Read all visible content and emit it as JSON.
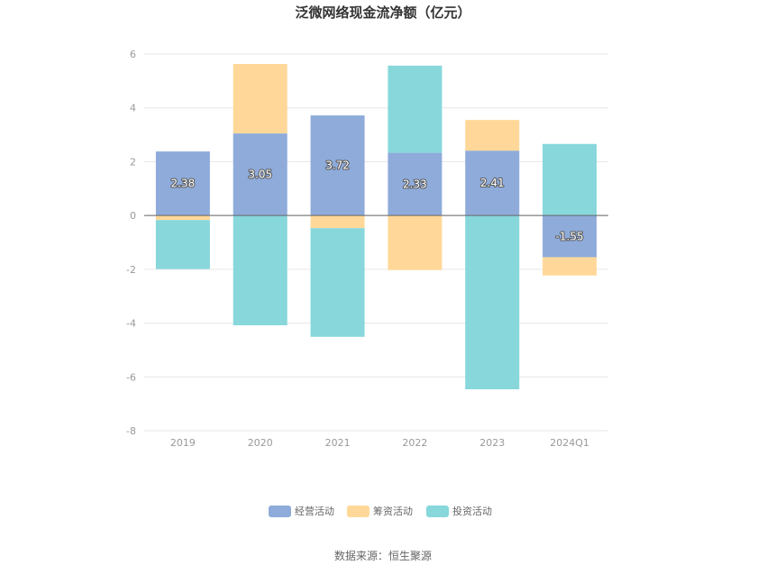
{
  "chart_data": {
    "type": "bar",
    "stacked": true,
    "title": "泛微网络现金流净额（亿元）",
    "categories": [
      "2019",
      "2020",
      "2021",
      "2022",
      "2023",
      "2024Q1"
    ],
    "ylim": [
      -8,
      6
    ],
    "yticks": [
      6,
      4,
      2,
      0,
      -2,
      -4,
      -6,
      -8
    ],
    "grid": true,
    "legend_position": "bottom",
    "series": [
      {
        "name": "经营活动",
        "color": "#8EABDA",
        "values": [
          2.38,
          3.05,
          3.72,
          2.33,
          2.41,
          -1.55
        ],
        "labels": [
          "2.38",
          "3.05",
          "3.72",
          "2.33",
          "2.41",
          "-1.55"
        ]
      },
      {
        "name": "筹资活动",
        "color": "#FFD899",
        "values": [
          -0.17,
          2.58,
          -0.47,
          -2.03,
          1.14,
          -0.68
        ]
      },
      {
        "name": "投资活动",
        "color": "#87D7DB",
        "values": [
          -1.82,
          -4.08,
          -4.04,
          3.24,
          -6.46,
          2.66
        ]
      }
    ],
    "source": "数据来源：恒生聚源"
  }
}
